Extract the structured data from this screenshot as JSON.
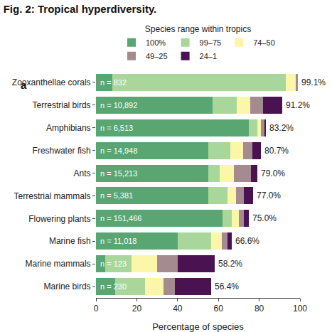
{
  "chart_data": {
    "type": "bar",
    "title": "Fig. 2: Tropical hyperdiversity.",
    "panel_label": "a",
    "legend_title": "Species range within tropics",
    "x_label": "Percentage of species",
    "orientation": "horizontal",
    "stacked": true,
    "grid": false,
    "legend": "top",
    "data_labels": false,
    "categories": [
      "Zooxanthellae corals",
      "Terrestrial birds",
      "Amphibians",
      "Freshwater fish",
      "Ants",
      "Terrestrial mammals",
      "Flowering plants",
      "Marine fish",
      "Marine mammals",
      "Marine birds"
    ],
    "series": [
      {
        "name": "100%",
        "color": "#5aa673",
        "values": [
          8,
          57,
          75,
          55,
          55,
          55,
          62,
          40,
          4.5,
          9.5
        ]
      },
      {
        "name": "99–75",
        "color": "#a9d79b",
        "values": [
          85,
          12,
          4,
          11,
          5.5,
          9.5,
          4.5,
          16.5,
          13,
          14.5
        ]
      },
      {
        "name": "74–50",
        "color": "#fbf6a8",
        "values": [
          5,
          6.5,
          2,
          6,
          7,
          4,
          3.5,
          5,
          12.5,
          9
        ]
      },
      {
        "name": "49–25",
        "color": "#a48b90",
        "values": [
          0.8,
          6.5,
          1.5,
          4.5,
          8.5,
          4,
          2.5,
          3,
          10,
          5.5
        ]
      },
      {
        "name": "24–1",
        "color": "#4a1251",
        "values": [
          0.3,
          9.2,
          0.7,
          4.2,
          3,
          4.5,
          2.5,
          2.1,
          18.2,
          17.9
        ]
      }
    ],
    "sample_sizes": [
      832,
      10892,
      6513,
      14948,
      15213,
      5381,
      151466,
      11018,
      123,
      230
    ],
    "sample_size_labels": [
      "n = 832",
      "n = 10,892",
      "n = 6,513",
      "n = 14,948",
      "n = 15,213",
      "n = 5,381",
      "n = 151,466",
      "n = 11,018",
      "n = 123",
      "n = 230"
    ],
    "totals": [
      99.1,
      91.2,
      83.2,
      80.7,
      79.0,
      77.0,
      75.0,
      66.6,
      58.2,
      56.4
    ],
    "total_labels": [
      "99.1%",
      "91.2%",
      "83.2%",
      "80.7%",
      "79.0%",
      "77.0%",
      "75.0%",
      "66.6%",
      "58.2%",
      "56.4%"
    ],
    "xlim": [
      0,
      100
    ],
    "xticks": [
      0,
      20,
      40,
      60,
      80,
      100
    ]
  }
}
